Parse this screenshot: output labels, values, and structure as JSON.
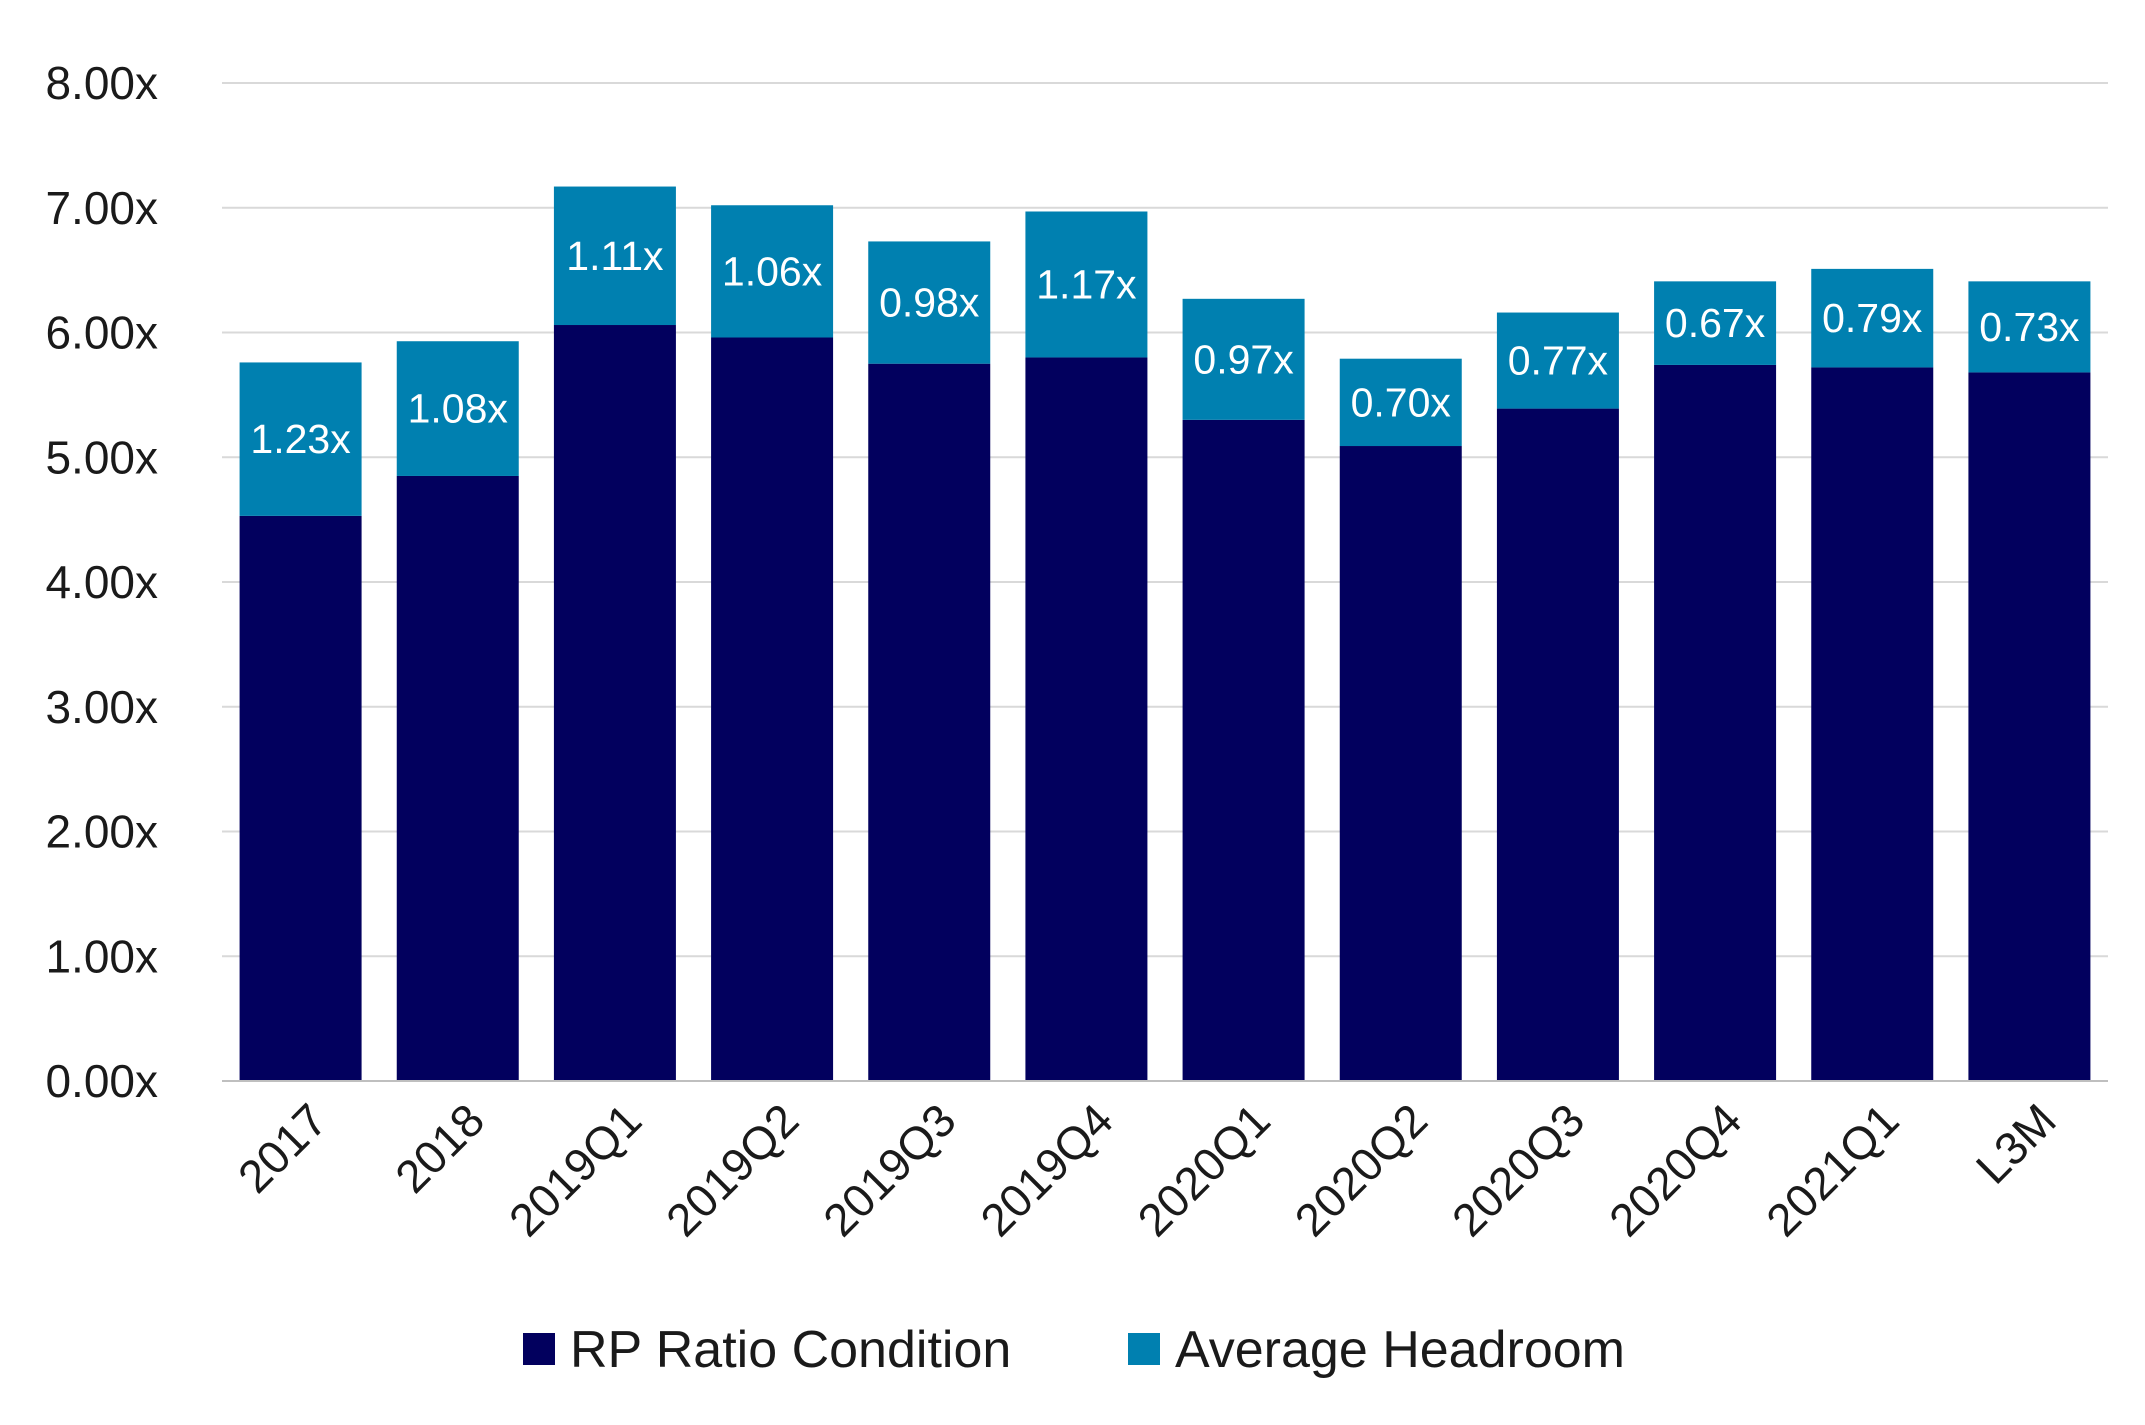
{
  "chart_data": {
    "type": "bar",
    "stacked": true,
    "categories": [
      "2017",
      "2018",
      "2019Q1",
      "2019Q2",
      "2019Q3",
      "2019Q4",
      "2020Q1",
      "2020Q2",
      "2020Q3",
      "2020Q4",
      "2021Q1",
      "L3M"
    ],
    "series": [
      {
        "name": "RP Ratio Condition",
        "color": "#02005e",
        "values": [
          4.53,
          4.85,
          6.06,
          5.96,
          5.75,
          5.8,
          5.3,
          5.09,
          5.39,
          5.74,
          5.72,
          5.68
        ]
      },
      {
        "name": "Average Headroom",
        "color": "#0080b0",
        "values": [
          1.23,
          1.08,
          1.11,
          1.06,
          0.98,
          1.17,
          0.97,
          0.7,
          0.77,
          0.67,
          0.79,
          0.73
        ]
      }
    ],
    "data_labels": [
      "1.23x",
      "1.08x",
      "1.11x",
      "1.06x",
      "0.98x",
      "1.17x",
      "0.97x",
      "0.70x",
      "0.77x",
      "0.67x",
      "0.79x",
      "0.73x"
    ],
    "yticks": [
      "0.00x",
      "1.00x",
      "2.00x",
      "3.00x",
      "4.00x",
      "5.00x",
      "6.00x",
      "7.00x",
      "8.00x"
    ],
    "ylim": [
      0,
      8
    ],
    "grid": true,
    "legend": "bottom-center",
    "xlabel": "",
    "ylabel": "",
    "title": ""
  }
}
